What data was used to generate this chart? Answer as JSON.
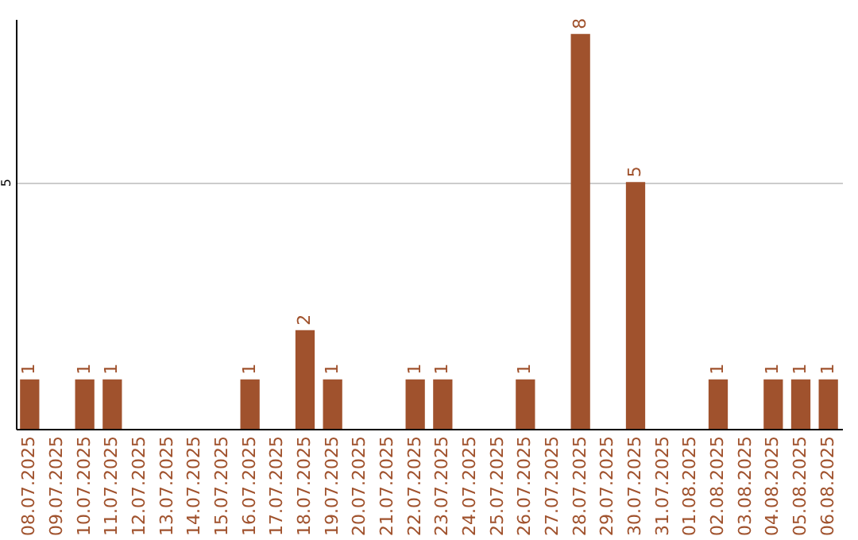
{
  "chart_data": {
    "type": "bar",
    "categories": [
      "08.07.2025",
      "09.07.2025",
      "10.07.2025",
      "11.07.2025",
      "12.07.2025",
      "13.07.2025",
      "14.07.2025",
      "15.07.2025",
      "16.07.2025",
      "17.07.2025",
      "18.07.2025",
      "19.07.2025",
      "20.07.2025",
      "21.07.2025",
      "22.07.2025",
      "23.07.2025",
      "24.07.2025",
      "25.07.2025",
      "26.07.2025",
      "27.07.2025",
      "28.07.2025",
      "29.07.2025",
      "30.07.2025",
      "31.07.2025",
      "01.08.2025",
      "02.08.2025",
      "03.08.2025",
      "04.08.2025",
      "05.08.2025",
      "06.08.2025"
    ],
    "values": [
      1,
      0,
      1,
      1,
      0,
      0,
      0,
      0,
      1,
      0,
      2,
      1,
      0,
      0,
      1,
      1,
      0,
      0,
      1,
      0,
      8,
      0,
      5,
      0,
      0,
      1,
      0,
      1,
      1,
      1
    ],
    "value_labels": [
      "1",
      null,
      "1",
      "1",
      null,
      null,
      null,
      null,
      "1",
      null,
      "2",
      "1",
      null,
      null,
      "1",
      "1",
      null,
      null,
      "1",
      null,
      "8",
      null,
      "5",
      null,
      null,
      "1",
      null,
      "1",
      "1",
      "1"
    ],
    "color": "#a0522d",
    "ylim": [
      0,
      8.3
    ],
    "yticks": [
      5
    ],
    "grid": "y"
  }
}
